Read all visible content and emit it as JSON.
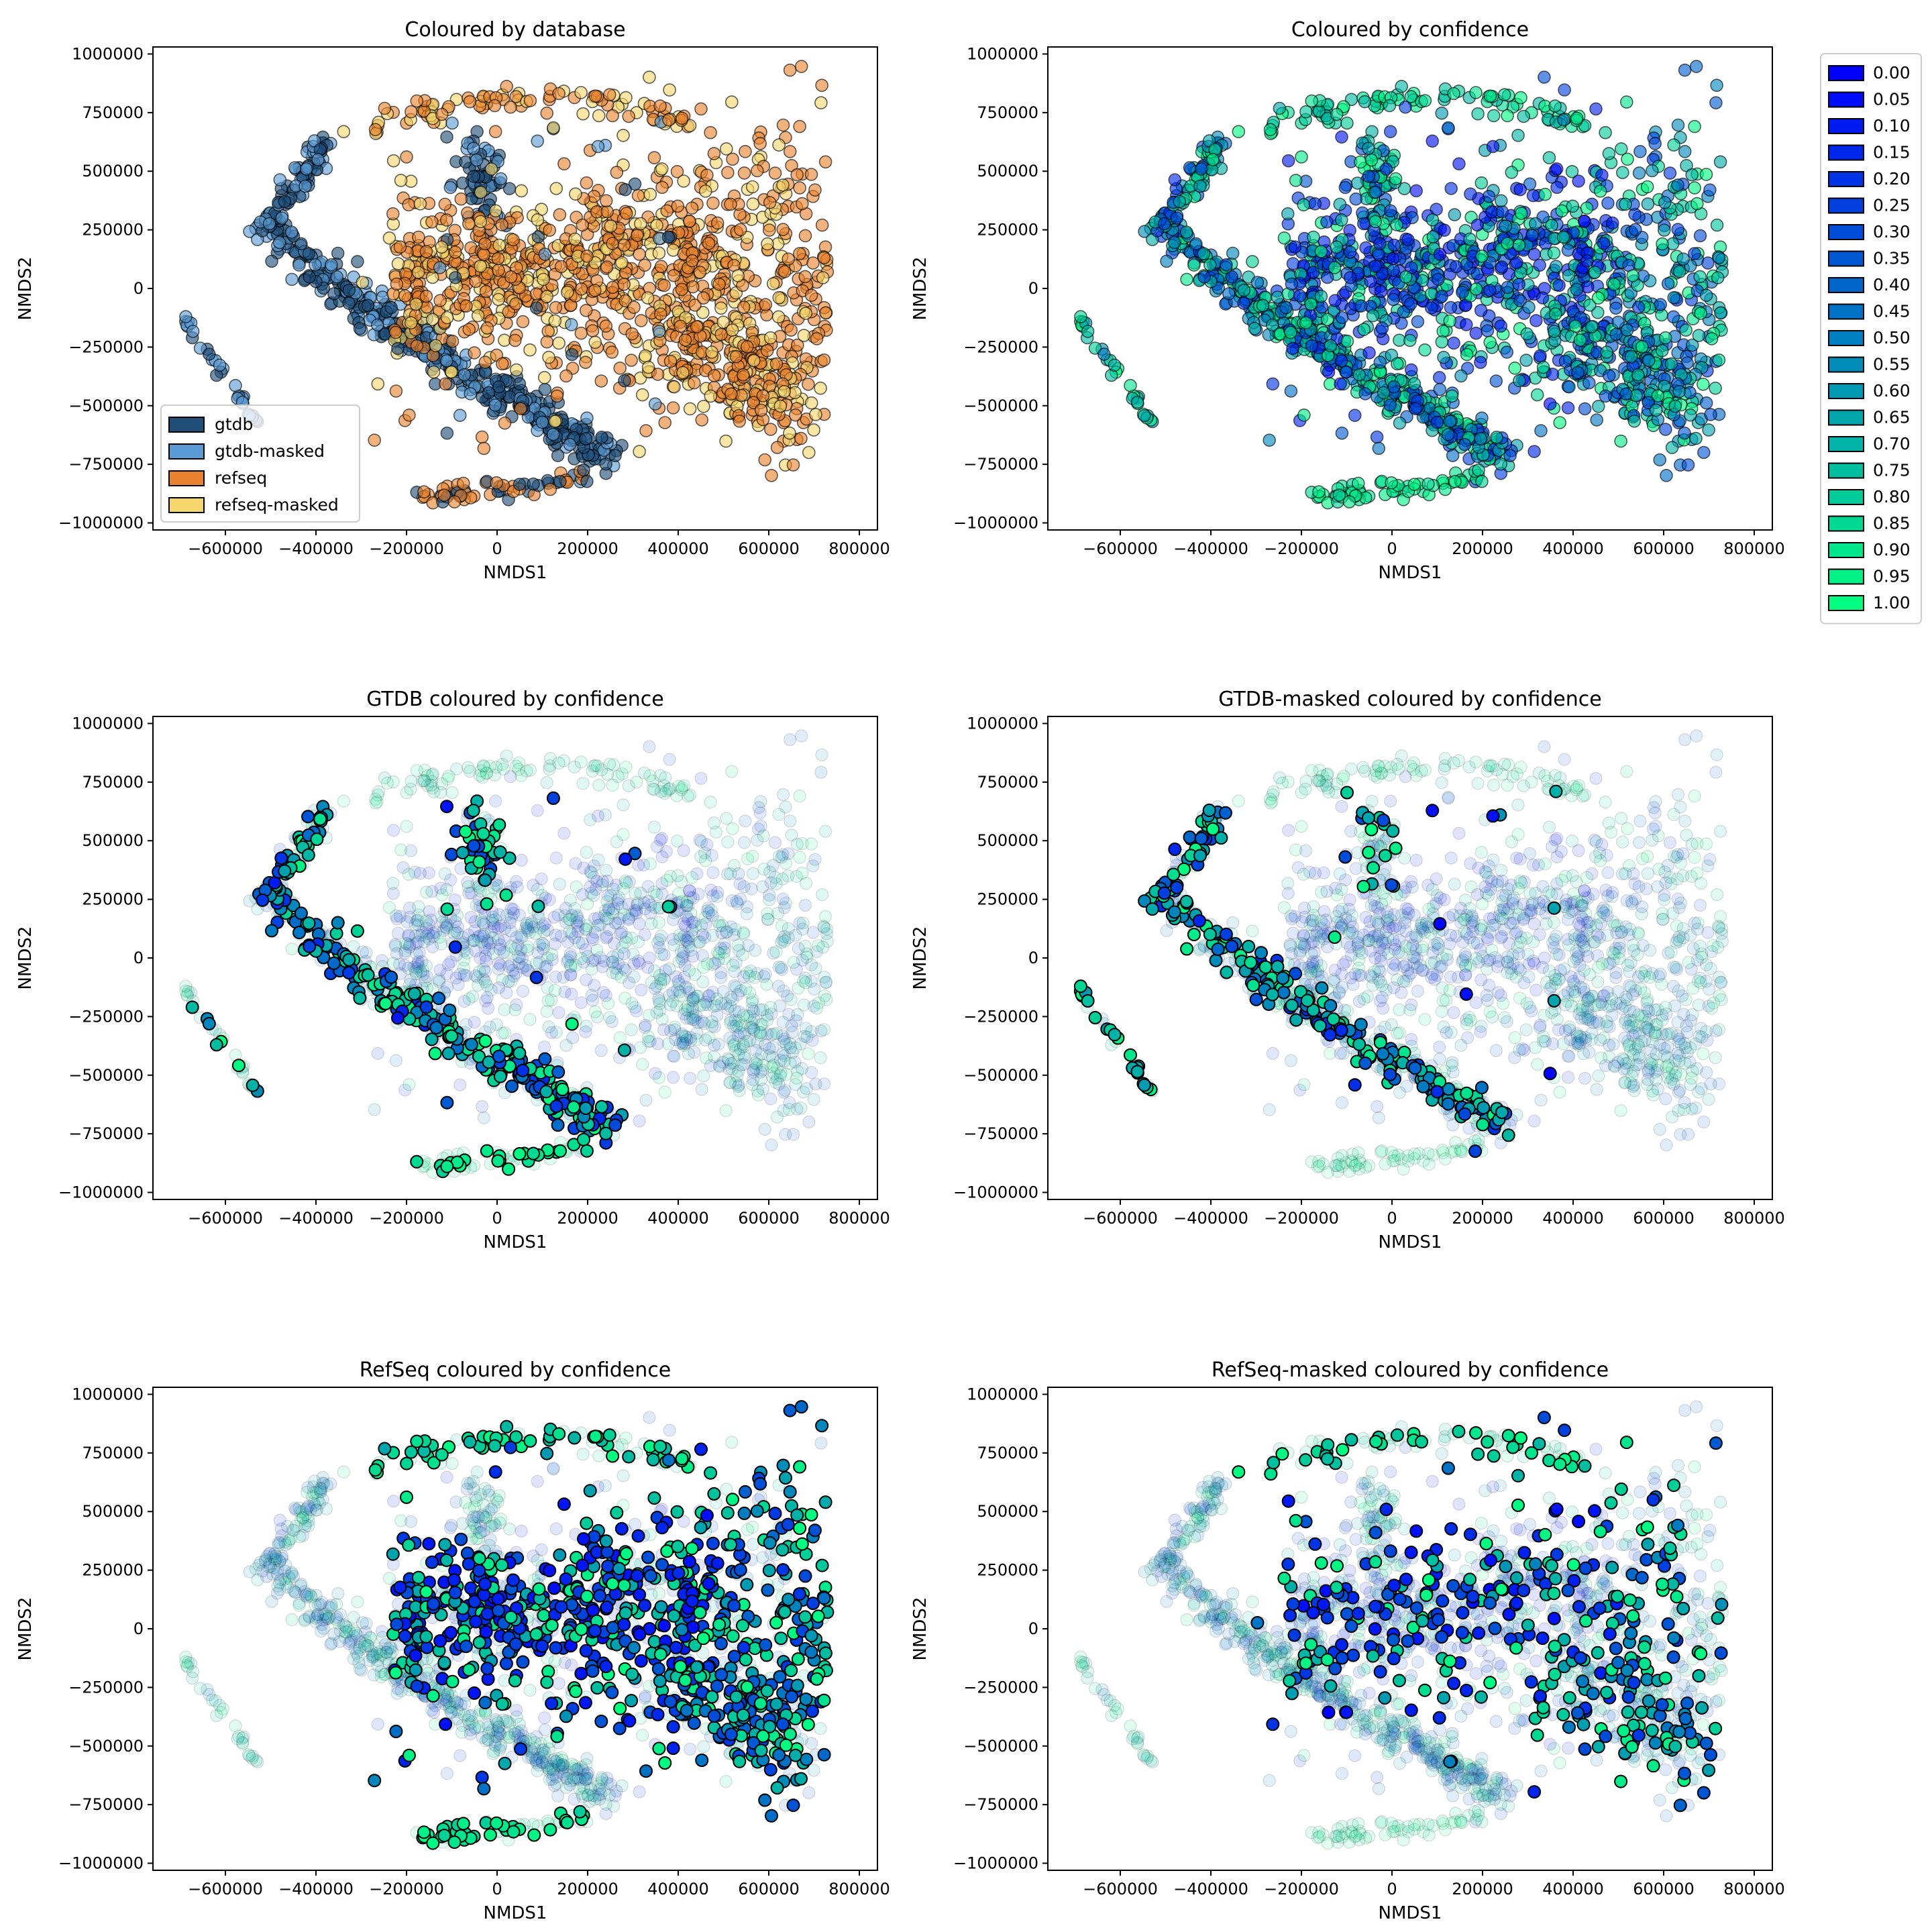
{
  "chart_data": [
    {
      "type": "scatter",
      "title": "Coloured by database",
      "xlabel": "NMDS1",
      "ylabel": "NMDS2",
      "xlim": [
        -760000,
        840000
      ],
      "ylim": [
        -1030000,
        1030000
      ],
      "xticks": [
        "-600000",
        "-400000",
        "-200000",
        "0",
        "200000",
        "400000",
        "600000",
        "800000"
      ],
      "yticks": [
        "1000000",
        "750000",
        "500000",
        "250000",
        "0",
        "-250000",
        "-500000",
        "-750000",
        "-1000000"
      ],
      "color_by": "database",
      "legend": {
        "placement": "lower-left",
        "entries": [
          {
            "label": "gtdb",
            "color": "#1f4e79"
          },
          {
            "label": "gtdb-masked",
            "color": "#5b9bd5"
          },
          {
            "label": "refseq",
            "color": "#e8822e"
          },
          {
            "label": "refseq-masked",
            "color": "#f5d76e"
          }
        ]
      },
      "series": [
        {
          "name": "gtdb",
          "points_sample": [
            [
              -480000,
              500000
            ],
            [
              -420000,
              150000
            ],
            [
              -300000,
              -100000
            ],
            [
              -100000,
              -250000
            ],
            [
              100000,
              -400000
            ],
            [
              250000,
              -650000
            ],
            [
              -50000,
              600000
            ],
            [
              -560000,
              250000
            ]
          ]
        },
        {
          "name": "gtdb-masked",
          "points_sample": [
            [
              -680000,
              -150000
            ],
            [
              -620000,
              -450000
            ],
            [
              -470000,
              300000
            ],
            [
              -350000,
              -60000
            ],
            [
              -150000,
              -220000
            ],
            [
              50000,
              -380000
            ],
            [
              200000,
              -720000
            ]
          ]
        },
        {
          "name": "refseq",
          "points_sample": [
            [
              -200000,
              0
            ],
            [
              0,
              50000
            ],
            [
              200000,
              150000
            ],
            [
              400000,
              200000
            ],
            [
              600000,
              0
            ],
            [
              500000,
              -400000
            ],
            [
              100000,
              700000
            ],
            [
              -180000,
              -900000
            ]
          ]
        },
        {
          "name": "refseq-masked",
          "points_sample": [
            [
              -250000,
              350000
            ],
            [
              200000,
              250000
            ],
            [
              350000,
              650000
            ],
            [
              600000,
              -200000
            ],
            [
              300000,
              -150000
            ],
            [
              -200000,
              -650000
            ]
          ]
        }
      ]
    },
    {
      "type": "scatter",
      "title": "Coloured by confidence",
      "xlabel": "NMDS1",
      "ylabel": "NMDS2",
      "xlim": [
        -760000,
        840000
      ],
      "ylim": [
        -1030000,
        1030000
      ],
      "xticks": [
        "-600000",
        "-400000",
        "-200000",
        "0",
        "200000",
        "400000",
        "600000",
        "800000"
      ],
      "yticks": [
        "1000000",
        "750000",
        "500000",
        "250000",
        "0",
        "-250000",
        "-500000",
        "-750000",
        "-1000000"
      ],
      "color_by": "confidence",
      "highlight": "all"
    },
    {
      "type": "scatter",
      "title": "GTDB coloured by confidence",
      "xlabel": "NMDS1",
      "ylabel": "NMDS2",
      "xlim": [
        -760000,
        840000
      ],
      "ylim": [
        -1030000,
        1030000
      ],
      "xticks": [
        "-600000",
        "-400000",
        "-200000",
        "0",
        "200000",
        "400000",
        "600000",
        "800000"
      ],
      "yticks": [
        "1000000",
        "750000",
        "500000",
        "250000",
        "0",
        "-250000",
        "-500000",
        "-750000",
        "-1000000"
      ],
      "color_by": "confidence",
      "highlight": "gtdb"
    },
    {
      "type": "scatter",
      "title": "GTDB-masked coloured by confidence",
      "xlabel": "NMDS1",
      "ylabel": "NMDS2",
      "xlim": [
        -760000,
        840000
      ],
      "ylim": [
        -1030000,
        1030000
      ],
      "xticks": [
        "-600000",
        "-400000",
        "-200000",
        "0",
        "200000",
        "400000",
        "600000",
        "800000"
      ],
      "yticks": [
        "1000000",
        "750000",
        "500000",
        "250000",
        "0",
        "-250000",
        "-500000",
        "-750000",
        "-1000000"
      ],
      "color_by": "confidence",
      "highlight": "gtdb-masked"
    },
    {
      "type": "scatter",
      "title": "RefSeq coloured by confidence",
      "xlabel": "NMDS1",
      "ylabel": "NMDS2",
      "xlim": [
        -760000,
        840000
      ],
      "ylim": [
        -1030000,
        1030000
      ],
      "xticks": [
        "-600000",
        "-400000",
        "-200000",
        "0",
        "200000",
        "400000",
        "600000",
        "800000"
      ],
      "yticks": [
        "1000000",
        "750000",
        "500000",
        "250000",
        "0",
        "-250000",
        "-500000",
        "-750000",
        "-1000000"
      ],
      "color_by": "confidence",
      "highlight": "refseq"
    },
    {
      "type": "scatter",
      "title": "RefSeq-masked coloured by confidence",
      "xlabel": "NMDS1",
      "ylabel": "NMDS2",
      "xlim": [
        -760000,
        840000
      ],
      "ylim": [
        -1030000,
        1030000
      ],
      "xticks": [
        "-600000",
        "-400000",
        "-200000",
        "0",
        "200000",
        "400000",
        "600000",
        "800000"
      ],
      "yticks": [
        "1000000",
        "750000",
        "500000",
        "250000",
        "0",
        "-250000",
        "-500000",
        "-750000",
        "-1000000"
      ],
      "color_by": "confidence",
      "highlight": "refseq-masked"
    }
  ],
  "confidence_legend": {
    "placement": "right of top-right panel",
    "colormap": "winter",
    "entries": [
      "0.00",
      "0.05",
      "0.10",
      "0.15",
      "0.20",
      "0.25",
      "0.30",
      "0.35",
      "0.40",
      "0.45",
      "0.50",
      "0.55",
      "0.60",
      "0.65",
      "0.70",
      "0.75",
      "0.80",
      "0.85",
      "0.90",
      "0.95",
      "1.00"
    ]
  },
  "colors": {
    "gtdb": "#1f4e79",
    "gtdb-masked": "#5b9bd5",
    "refseq": "#e8822e",
    "refseq-masked": "#f5d76e",
    "conf_low": "#0000ff",
    "conf_high": "#00ff80",
    "edge": "#000000"
  }
}
